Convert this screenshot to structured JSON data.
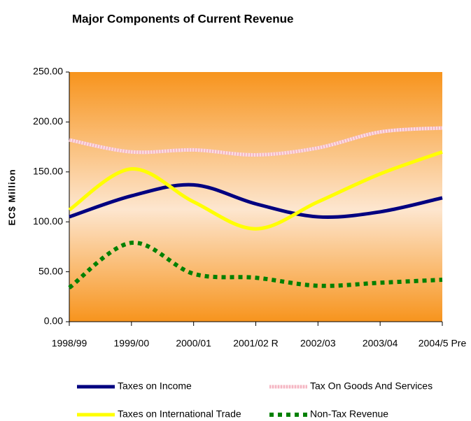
{
  "chart_data": {
    "type": "line",
    "title": "Major Components of Current Revenue",
    "y_label": "EC$ Million",
    "categories": [
      "1998/99",
      "1999/00",
      "2000/01",
      "2001/02 R",
      "2002/03",
      "2003/04",
      "2004/5 Pre"
    ],
    "series": [
      {
        "name": "Taxes on Income",
        "color": "#000080",
        "style": "solid",
        "values": [
          105,
          126,
          137,
          118,
          105,
          110,
          124
        ]
      },
      {
        "name": "Tax On Goods And Services",
        "color": "#f4b6c2",
        "style": "dashed",
        "values": [
          182,
          170,
          172,
          167,
          174,
          190,
          194
        ]
      },
      {
        "name": "Taxes on International Trade",
        "color": "#ffff00",
        "style": "solid",
        "values": [
          112,
          153,
          120,
          93,
          120,
          148,
          170
        ]
      },
      {
        "name": "Non-Tax Revenue",
        "color": "#008000",
        "style": "dotted",
        "values": [
          34,
          79,
          48,
          44,
          36,
          39,
          42
        ]
      }
    ],
    "ylim": [
      0,
      250
    ],
    "yticks": [
      {
        "value": 0,
        "label": "0.00"
      },
      {
        "value": 50,
        "label": "50.00"
      },
      {
        "value": 100,
        "label": "100.00"
      },
      {
        "value": 150,
        "label": "150.00"
      },
      {
        "value": 200,
        "label": "200.00"
      },
      {
        "value": 250,
        "label": "250.00"
      }
    ],
    "legend": "bottom"
  }
}
